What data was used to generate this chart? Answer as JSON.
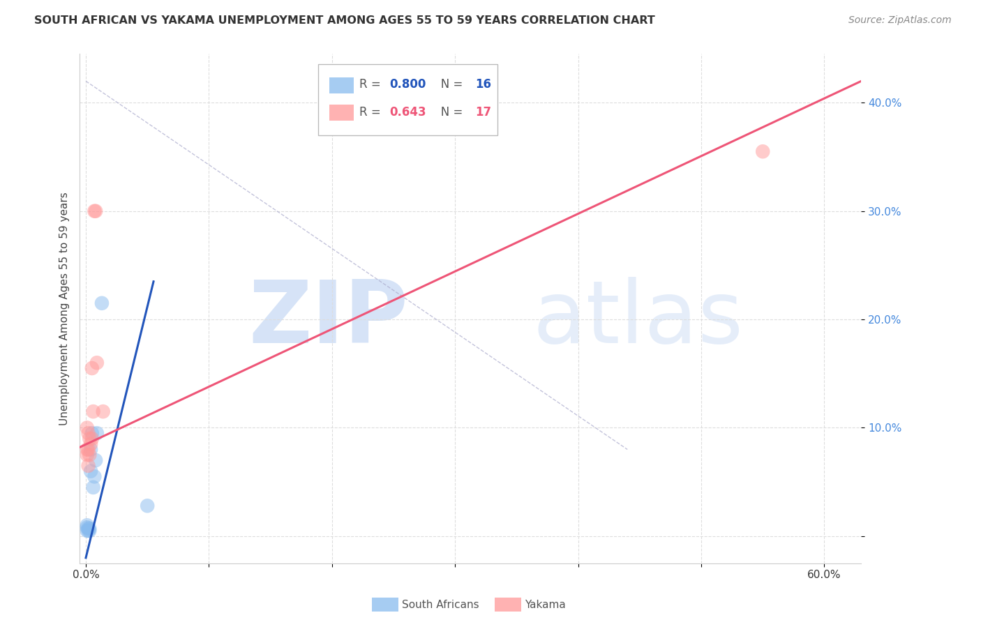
{
  "title": "SOUTH AFRICAN VS YAKAMA UNEMPLOYMENT AMONG AGES 55 TO 59 YEARS CORRELATION CHART",
  "source": "Source: ZipAtlas.com",
  "xlabel_ticks": [
    0.0,
    0.1,
    0.2,
    0.3,
    0.4,
    0.5,
    0.6
  ],
  "xlabel_labels": [
    "0.0%",
    "",
    "",
    "",
    "",
    "",
    "60.0%"
  ],
  "ylabel_ticks": [
    0.0,
    0.1,
    0.2,
    0.3,
    0.4
  ],
  "ylabel_labels": [
    "",
    "10.0%",
    "20.0%",
    "30.0%",
    "40.0%"
  ],
  "xlim": [
    -0.005,
    0.63
  ],
  "ylim": [
    -0.025,
    0.445
  ],
  "ylabel": "Unemployment Among Ages 55 to 59 years",
  "legend_label1": "South Africans",
  "legend_label2": "Yakama",
  "r1": 0.8,
  "n1": 16,
  "r2": 0.643,
  "n2": 17,
  "color_blue": "#88BBEE",
  "color_pink": "#FF9999",
  "color_blue_line": "#2255BB",
  "color_pink_line": "#EE5577",
  "south_african_x": [
    0.001,
    0.001,
    0.001,
    0.002,
    0.002,
    0.003,
    0.003,
    0.004,
    0.004,
    0.005,
    0.006,
    0.007,
    0.008,
    0.009,
    0.013,
    0.05
  ],
  "south_african_y": [
    0.005,
    0.008,
    0.01,
    0.005,
    0.007,
    0.005,
    0.007,
    0.06,
    0.08,
    0.095,
    0.045,
    0.055,
    0.07,
    0.095,
    0.215,
    0.028
  ],
  "yakama_x": [
    0.001,
    0.001,
    0.001,
    0.002,
    0.002,
    0.002,
    0.003,
    0.003,
    0.004,
    0.005,
    0.005,
    0.006,
    0.007,
    0.008,
    0.009,
    0.014,
    0.55
  ],
  "yakama_y": [
    0.075,
    0.08,
    0.1,
    0.065,
    0.08,
    0.095,
    0.075,
    0.09,
    0.085,
    0.09,
    0.155,
    0.115,
    0.3,
    0.3,
    0.16,
    0.115,
    0.355
  ],
  "blue_trendline_x": [
    0.0,
    0.055
  ],
  "blue_trendline_y": [
    -0.02,
    0.235
  ],
  "pink_trendline_x": [
    -0.005,
    0.63
  ],
  "pink_trendline_y": [
    0.082,
    0.42
  ],
  "ref_line_x": [
    0.0,
    0.44
  ],
  "ref_line_y": [
    0.42,
    0.08
  ],
  "watermark_zip": "ZIP",
  "watermark_atlas": "atlas",
  "background_color": "#ffffff",
  "grid_color": "#dddddd"
}
